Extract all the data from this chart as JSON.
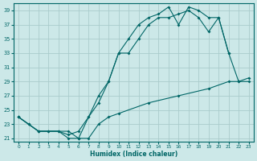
{
  "xlabel": "Humidex (Indice chaleur)",
  "bg_color": "#cce8e8",
  "grid_color": "#aacccc",
  "line_color": "#006666",
  "xlim": [
    -0.5,
    23.5
  ],
  "ylim": [
    20.5,
    40
  ],
  "yticks": [
    21,
    23,
    25,
    27,
    29,
    31,
    33,
    35,
    37,
    39
  ],
  "xticks": [
    0,
    1,
    2,
    3,
    4,
    5,
    6,
    7,
    8,
    9,
    10,
    11,
    12,
    13,
    14,
    15,
    16,
    17,
    18,
    19,
    20,
    21,
    22,
    23
  ],
  "curve1_x": [
    0,
    1,
    2,
    3,
    4,
    5,
    6,
    7,
    8,
    9,
    10,
    11,
    12,
    13,
    14,
    15,
    16,
    17,
    18,
    19,
    20,
    21
  ],
  "curve1_y": [
    24,
    23,
    22,
    22,
    22,
    21,
    21,
    24,
    26,
    29,
    33,
    33,
    35,
    37,
    38,
    38,
    38.5,
    39,
    38,
    36,
    38,
    33
  ],
  "curve2_x": [
    0,
    1,
    2,
    3,
    4,
    5,
    6,
    7,
    8,
    9,
    10,
    11,
    12,
    13,
    14,
    15,
    16,
    17,
    18,
    19,
    20,
    21,
    22,
    23
  ],
  "curve2_y": [
    24,
    23,
    22,
    22,
    22,
    21.5,
    22,
    24,
    27,
    29,
    33,
    35,
    37,
    38,
    38.5,
    39.5,
    37,
    39.5,
    39,
    38,
    38,
    33,
    29,
    29
  ],
  "curve3_x": [
    0,
    2,
    5,
    6,
    7,
    8,
    9,
    10,
    13,
    16,
    19,
    21,
    22,
    23
  ],
  "curve3_y": [
    24,
    22,
    22,
    21,
    21,
    23,
    24,
    24.5,
    26,
    27,
    28,
    29,
    29,
    29.5
  ]
}
